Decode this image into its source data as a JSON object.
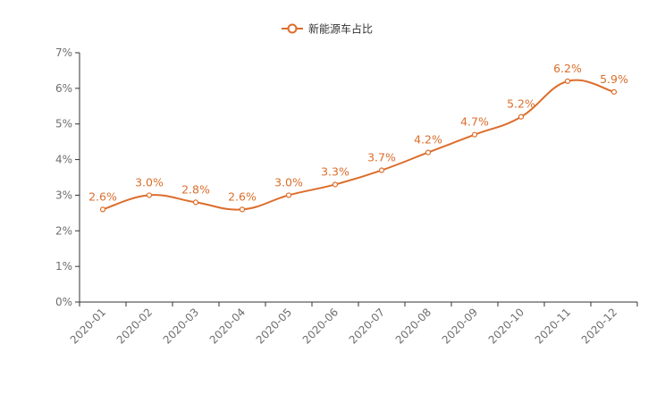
{
  "colors": {
    "series": "#dc6d2b",
    "axis": "#333333",
    "tick_text": "#6e6e6e"
  },
  "legend": {
    "icon": "line-circle-icon",
    "label": "新能源车占比",
    "position": "top-center"
  },
  "chart_data": {
    "type": "line",
    "smooth": true,
    "categories": [
      "2020-01",
      "2020-02",
      "2020-03",
      "2020-04",
      "2020-05",
      "2020-06",
      "2020-07",
      "2020-08",
      "2020-09",
      "2020-10",
      "2020-11",
      "2020-12"
    ],
    "series": [
      {
        "name": "新能源车占比",
        "values": [
          2.6,
          3.0,
          2.8,
          2.6,
          3.0,
          3.3,
          3.7,
          4.2,
          4.7,
          5.2,
          6.2,
          5.9
        ],
        "labels": [
          "2.6%",
          "3.0%",
          "2.8%",
          "2.6%",
          "3.0%",
          "3.3%",
          "3.7%",
          "4.2%",
          "4.7%",
          "5.2%",
          "6.2%",
          "5.9%"
        ]
      }
    ],
    "yticks": [
      "0%",
      "1%",
      "2%",
      "3%",
      "4%",
      "5%",
      "6%",
      "7%"
    ],
    "ylim": [
      0,
      7
    ],
    "xlabel": "",
    "ylabel": "",
    "grid": false
  }
}
